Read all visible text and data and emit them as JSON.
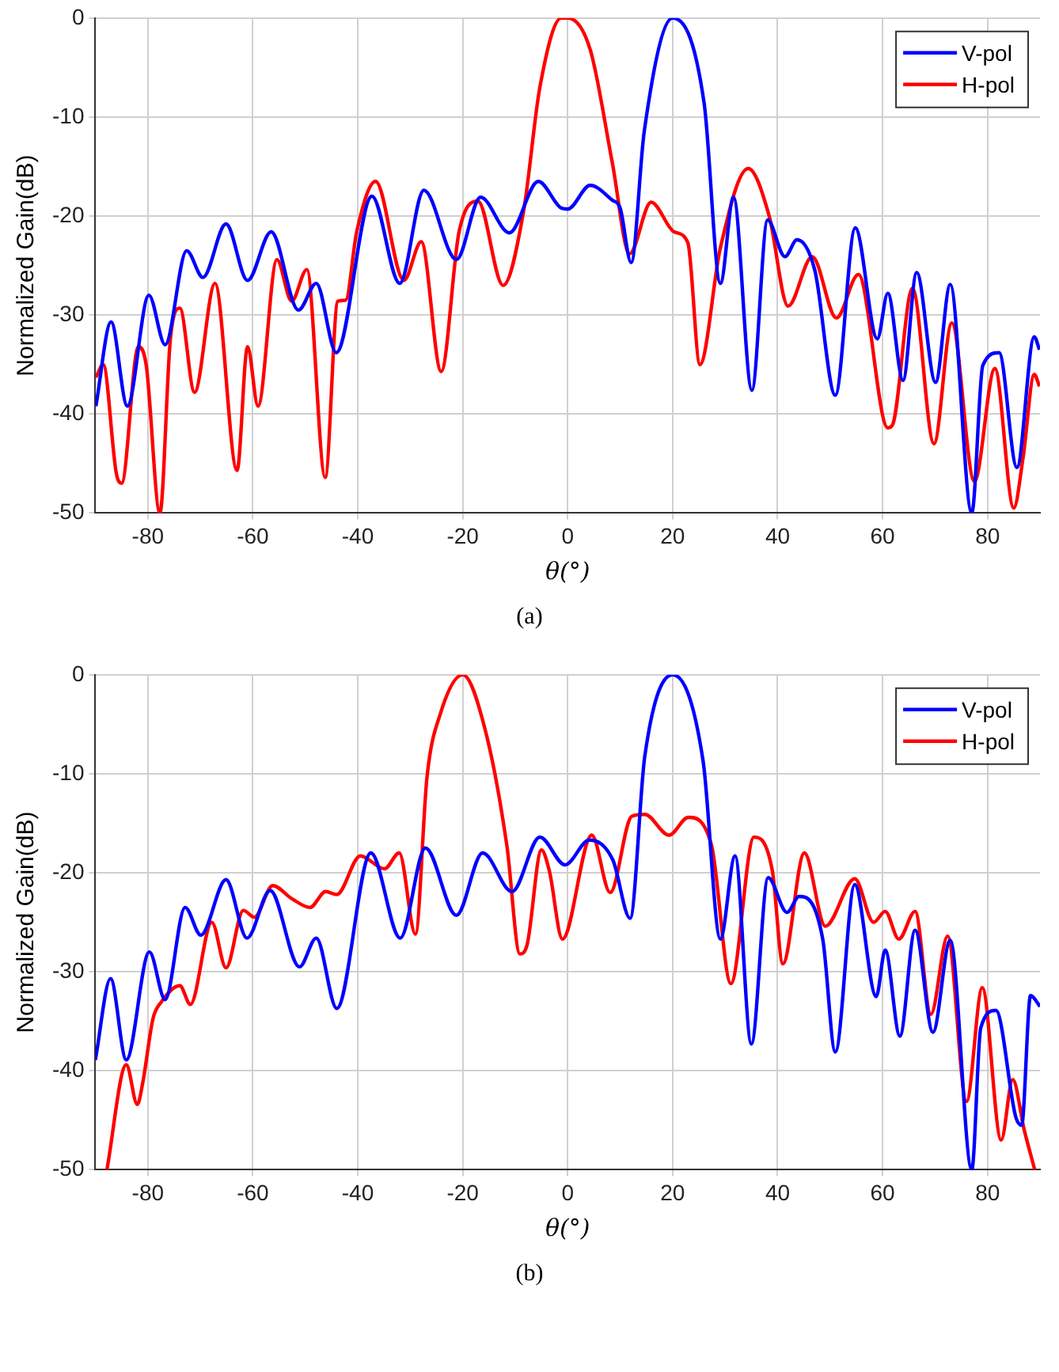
{
  "chart_data": [
    {
      "type": "line",
      "xlabel": "θ(°)",
      "ylabel": "Normalized Gain(dB)",
      "xlim": [
        -90,
        90
      ],
      "xticks": [
        -80,
        -60,
        -40,
        -20,
        0,
        20,
        40,
        60,
        80
      ],
      "ylim": [
        -50,
        0
      ],
      "yticks": [
        -50,
        -40,
        -30,
        -20,
        -10,
        0
      ],
      "grid": true,
      "legend": "top right",
      "marker": "none",
      "line_style": "solid",
      "annotations": [
        "(a)"
      ],
      "series": [
        {
          "name": "V-pol",
          "color": "#0000ff",
          "x": [
            -89.9,
            -87,
            -83.9,
            -79.8,
            -76.7,
            -72.6,
            -69.5,
            -65.1,
            -61,
            -56.5,
            -51.3,
            -47.9,
            -44.1,
            -37.3,
            -32,
            -27.4,
            -21.2,
            -16.6,
            -11.1,
            -5.6,
            -1.2,
            0,
            4.3,
            8.5,
            10,
            12.1,
            14.6,
            20,
            26,
            29.1,
            31.6,
            35.1,
            38.1,
            41.4,
            43.7,
            47.1,
            51,
            54.8,
            59,
            61,
            63.9,
            66.5,
            70.1,
            72.9,
            77,
            79.1,
            82.2,
            85.6,
            88.9,
            89.9
          ],
          "values": [
            -39.2,
            -30.7,
            -39.2,
            -28,
            -33,
            -23.5,
            -26.2,
            -20.8,
            -26.5,
            -21.6,
            -29.5,
            -26.8,
            -33.8,
            -18,
            -26.8,
            -17.4,
            -24.4,
            -18.1,
            -21.7,
            -16.5,
            -19.2,
            -19.3,
            -16.9,
            -18.4,
            -19.2,
            -24.7,
            -11.4,
            0,
            -8.6,
            -26.8,
            -18.1,
            -37.6,
            -20.4,
            -24.1,
            -22.4,
            -25.5,
            -38.1,
            -21.2,
            -32.4,
            -27.8,
            -36.6,
            -25.7,
            -36.8,
            -26.9,
            -50,
            -35.1,
            -33.8,
            -45.4,
            -32.2,
            -33.5
          ]
        },
        {
          "name": "H-pol",
          "color": "#ff0000",
          "x": [
            -89.9,
            -88.5,
            -86,
            -85,
            -81.8,
            -80.3,
            -77.7,
            -75.7,
            -73.9,
            -71.1,
            -67.2,
            -63,
            -61,
            -59,
            -55.4,
            -52.6,
            -49.7,
            -46.2,
            -43.8,
            -42.3,
            -40.2,
            -36.6,
            -31.2,
            -27.9,
            -24.1,
            -20.7,
            -17.1,
            -12.3,
            -8.4,
            -5.3,
            -1.2,
            0,
            4.3,
            8.5,
            11.8,
            15.9,
            20.3,
            22.9,
            25.2,
            29.1,
            34.4,
            38.4,
            42,
            46.6,
            51.2,
            55.4,
            61,
            61.9,
            65.7,
            69.8,
            73.2,
            77.5,
            81.4,
            85,
            86.8,
            88.9,
            89.9
          ],
          "values": [
            -36.3,
            -35,
            -46,
            -47,
            -33.2,
            -35.1,
            -50,
            -32.4,
            -29.3,
            -37.8,
            -26.8,
            -45.7,
            -33.2,
            -39.2,
            -24.4,
            -28.6,
            -25.4,
            -46.4,
            -28.6,
            -28.5,
            -21.6,
            -16.5,
            -26.5,
            -22.6,
            -35.7,
            -21.6,
            -18.5,
            -27,
            -19.5,
            -7,
            0,
            0,
            -3.2,
            -14.6,
            -23.8,
            -18.6,
            -21.6,
            -22.7,
            -35,
            -23.2,
            -15.2,
            -20,
            -29.1,
            -24.1,
            -30.3,
            -25.9,
            -41.4,
            -41.1,
            -27.3,
            -43,
            -30.8,
            -46.8,
            -35.4,
            -49.5,
            -44.3,
            -36,
            -37.2
          ]
        }
      ]
    },
    {
      "type": "line",
      "xlabel": "θ(°)",
      "ylabel": "Normalized Gain(dB)",
      "xlim": [
        -90,
        90
      ],
      "xticks": [
        -80,
        -60,
        -40,
        -20,
        0,
        20,
        40,
        60,
        80
      ],
      "ylim": [
        -50,
        0
      ],
      "yticks": [
        -50,
        -40,
        -30,
        -20,
        -10,
        0
      ],
      "grid": true,
      "legend": "top right",
      "marker": "none",
      "line_style": "solid",
      "annotations": [
        "(b)"
      ],
      "series": [
        {
          "name": "V-pol",
          "color": "#0000ff",
          "x": [
            -90,
            -87.1,
            -84.1,
            -79.7,
            -76.7,
            -72.9,
            -69.9,
            -65.1,
            -61.1,
            -56.7,
            -51.1,
            -47.9,
            -44,
            -37.5,
            -31.9,
            -27.1,
            -21.2,
            -16.2,
            -10.6,
            -5.3,
            -0.5,
            4.1,
            8.6,
            11.9,
            14.7,
            20,
            25.8,
            29.1,
            31.9,
            35,
            38.2,
            41.8,
            44.1,
            48.6,
            51,
            54.7,
            58.8,
            60.5,
            63.3,
            66.2,
            69.6,
            72.9,
            77,
            78.7,
            81.6,
            85.4,
            86.5,
            88.2,
            90
          ],
          "values": [
            -38.9,
            -30.7,
            -38.9,
            -28,
            -32.8,
            -23.5,
            -26.3,
            -20.7,
            -26.6,
            -21.8,
            -29.5,
            -26.6,
            -33.7,
            -18,
            -26.6,
            -17.5,
            -24.3,
            -18,
            -21.9,
            -16.4,
            -19.2,
            -16.7,
            -18.7,
            -24.6,
            -8.2,
            0,
            -8.7,
            -26.7,
            -18.3,
            -37.3,
            -20.5,
            -24,
            -22.4,
            -26.7,
            -38.1,
            -21.2,
            -32.5,
            -27.8,
            -36.5,
            -25.8,
            -36.1,
            -26.8,
            -50,
            -35.7,
            -33.9,
            -44.7,
            -45.5,
            -32.4,
            -33.5
          ]
        },
        {
          "name": "H-pol",
          "color": "#ff0000",
          "x": [
            -87.8,
            -84.1,
            -82,
            -81,
            -79,
            -77.5,
            -73.9,
            -71.9,
            -67.8,
            -65.1,
            -61.8,
            -59.7,
            -56.2,
            -52.6,
            -49.1,
            -46.1,
            -44,
            -39.5,
            -34.9,
            -32.1,
            -29,
            -26.8,
            -24.3,
            -20,
            -15.7,
            -11.6,
            -9.1,
            -7.7,
            -5,
            -3.5,
            -1,
            4.6,
            8.1,
            12.2,
            14.7,
            19.3,
            23,
            27.4,
            31.1,
            35.5,
            39,
            41,
            45.1,
            49.1,
            54.7,
            58.3,
            60.5,
            63.1,
            66.2,
            69.2,
            72.4,
            76,
            79,
            82.6,
            84.8,
            87,
            89
          ],
          "values": [
            -50,
            -39.4,
            -43.4,
            -41.3,
            -34.7,
            -33.1,
            -31.4,
            -33.3,
            -25,
            -29.6,
            -23.8,
            -24.5,
            -21.3,
            -22.6,
            -23.5,
            -21.9,
            -22.2,
            -18.3,
            -19.6,
            -18,
            -26.2,
            -10.3,
            -4,
            0,
            -5.6,
            -17.2,
            -28.2,
            -27.2,
            -17.7,
            -19.8,
            -26.7,
            -16.2,
            -22,
            -14.3,
            -14.1,
            -16.2,
            -14.4,
            -17.2,
            -31.2,
            -16.4,
            -19.8,
            -29.2,
            -18,
            -25.4,
            -20.6,
            -25,
            -23.9,
            -26.7,
            -23.9,
            -34.3,
            -26.4,
            -43.1,
            -31.6,
            -47,
            -40.9,
            -46,
            -50
          ]
        }
      ]
    }
  ]
}
